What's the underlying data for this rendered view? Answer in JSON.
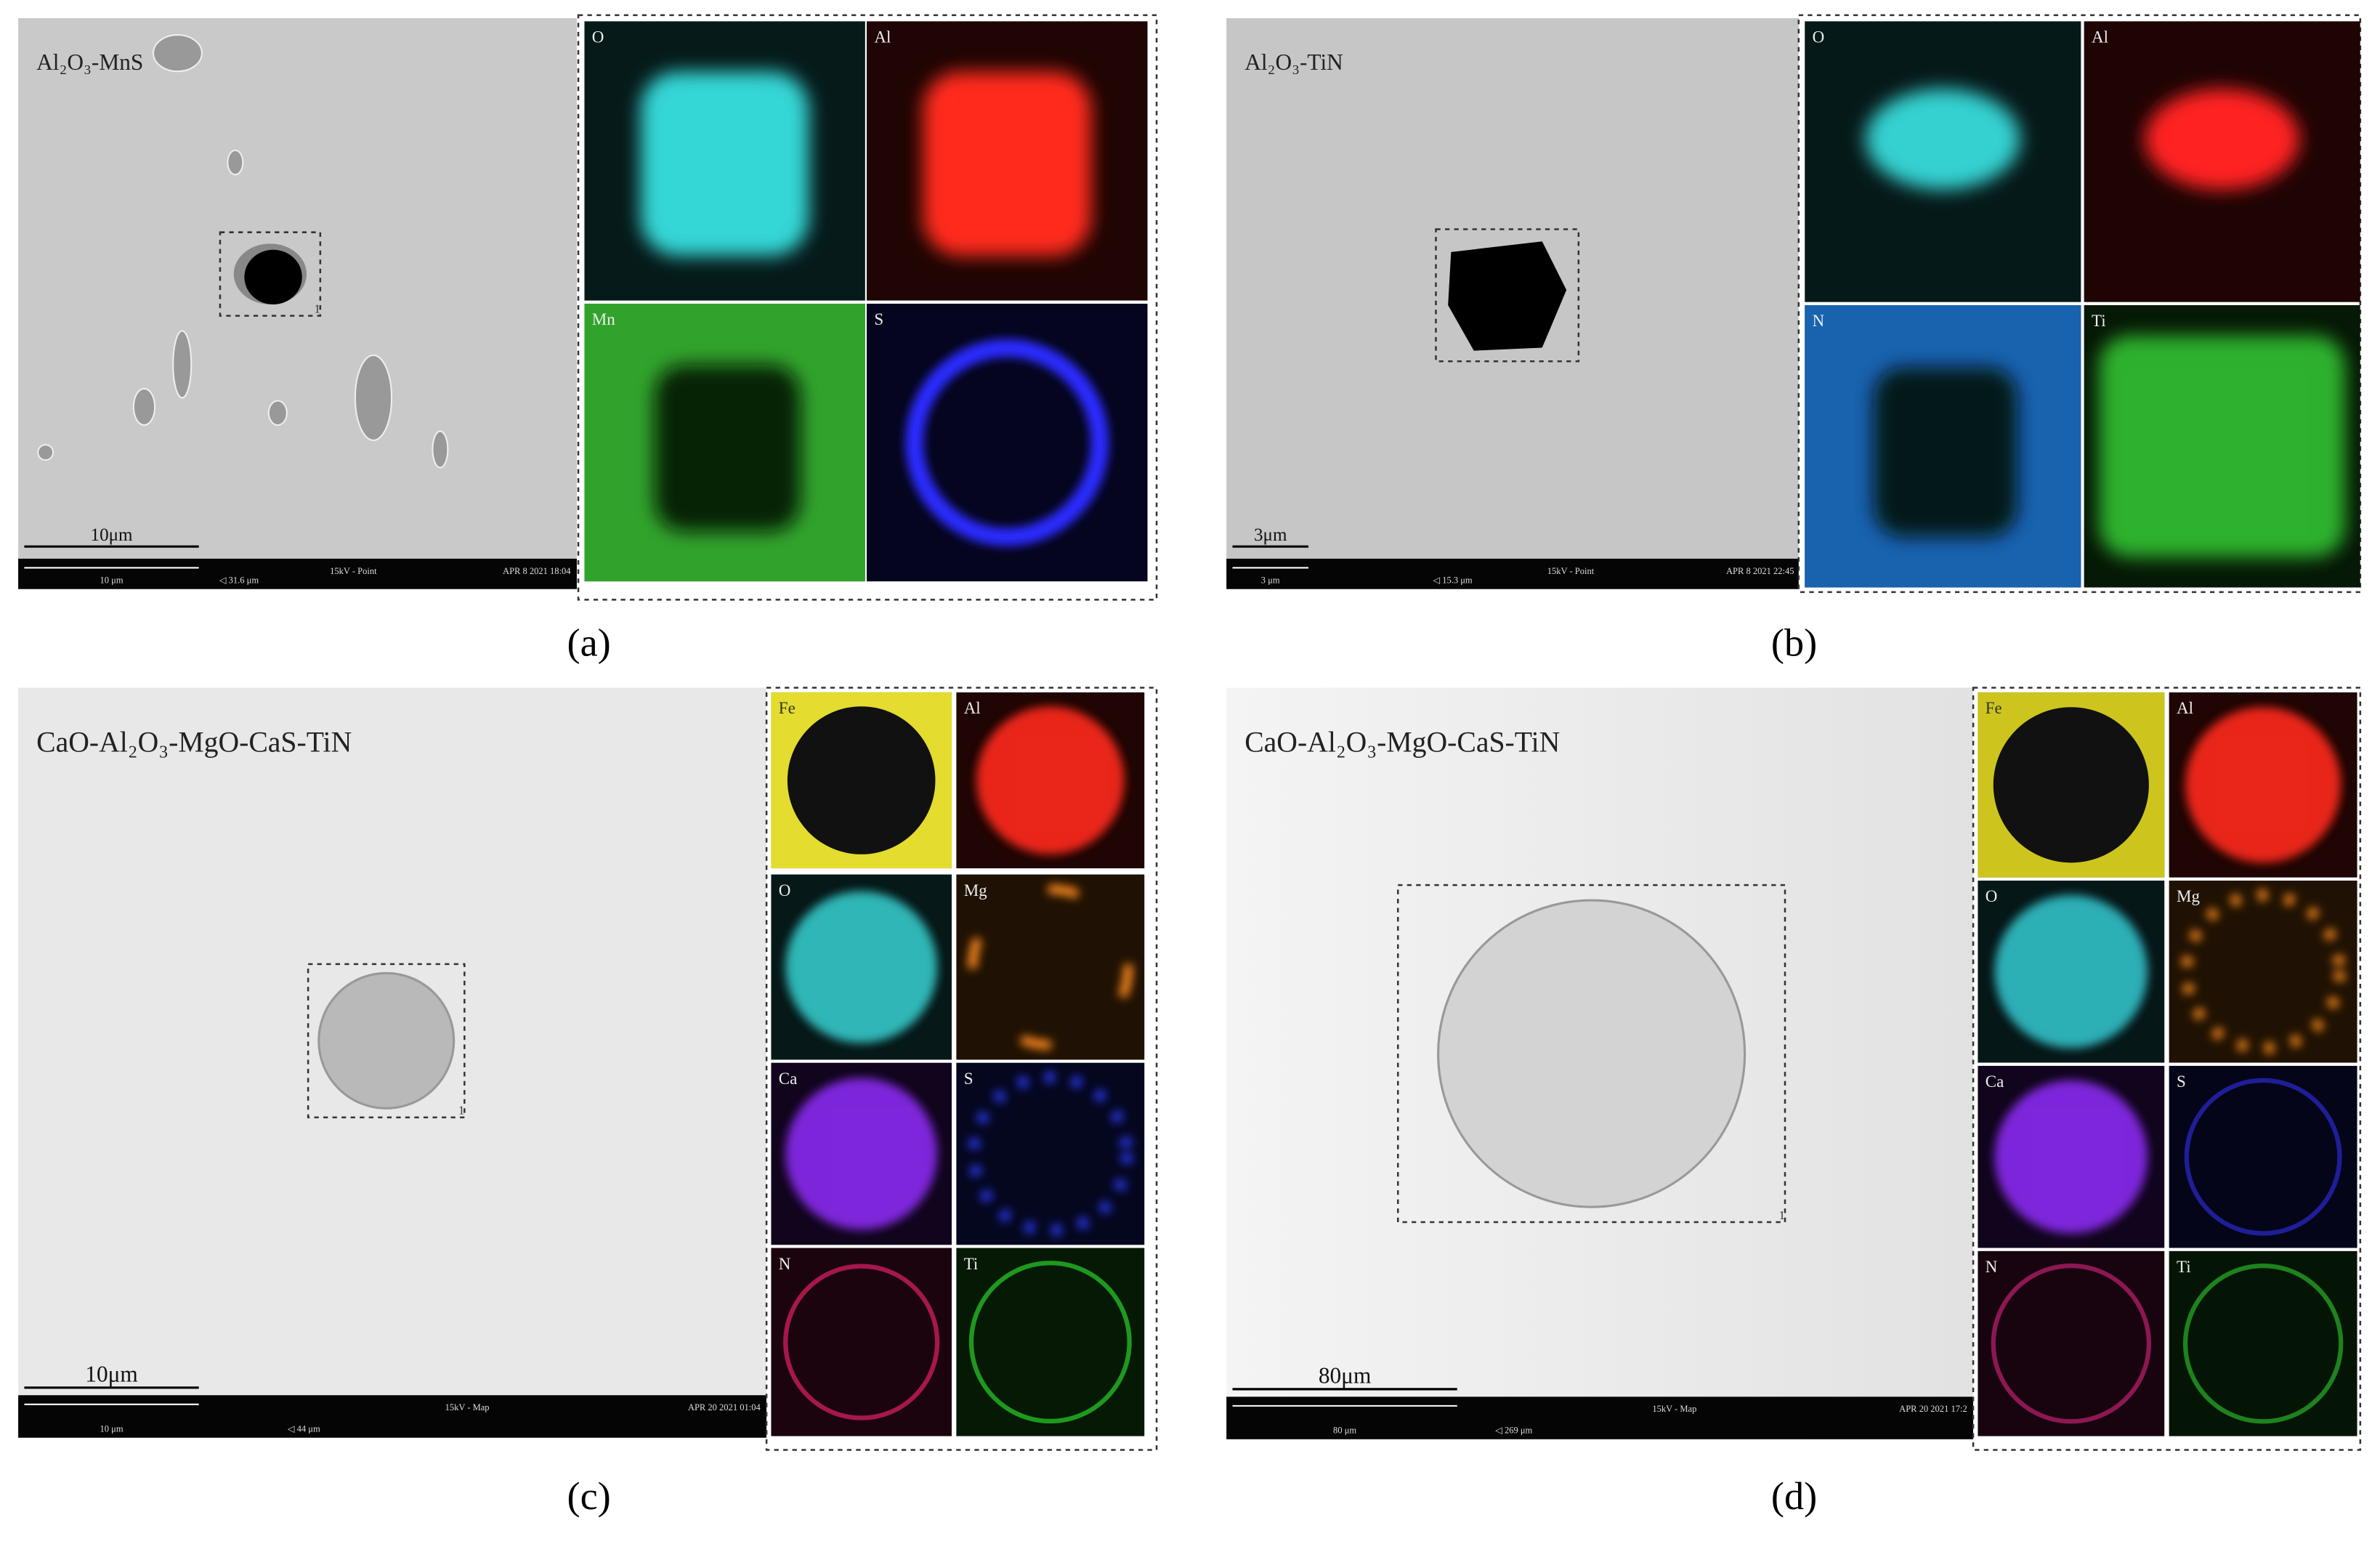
{
  "panels": [
    {
      "caption": "(a)",
      "title": "Al₂O₃-MnS",
      "scale_bar": "10μm",
      "box_label": "1",
      "info_bar": [
        "10 μm",
        "◁ 31.6 μm",
        "15kV - Point",
        "APR 8 2021 18:04"
      ],
      "maps": [
        {
          "label": "O",
          "color": "#35d6d6"
        },
        {
          "label": "Al",
          "color": "#ff2a1a"
        },
        {
          "label": "Mn",
          "color": "#3fd23a"
        },
        {
          "label": "S",
          "color": "#2a2aff"
        }
      ]
    },
    {
      "caption": "(b)",
      "title": "Al₂O₃-TiN",
      "scale_bar": "3μm",
      "info_bar": [
        "3 μm",
        "◁ 15.3 μm",
        "15kV - Point",
        "APR 8 2021 22:45"
      ],
      "maps": [
        {
          "label": "O",
          "color": "#35d0d0"
        },
        {
          "label": "Al",
          "color": "#ff2020"
        },
        {
          "label": "N",
          "color": "#1f7fe0"
        },
        {
          "label": "Ti",
          "color": "#34cc34"
        }
      ]
    },
    {
      "caption": "(c)",
      "title": "CaO-Al₂O₃-MgO-CaS-TiN",
      "scale_bar": "10μm",
      "box_label": "1",
      "info_bar": [
        "10 μm",
        "◁ 44 μm",
        "15kV - Map",
        "APR 20 2021 01:04"
      ],
      "maps": [
        {
          "label": "Fe",
          "color": "#f0e830"
        },
        {
          "label": "Al",
          "color": "#ff2a1a"
        },
        {
          "label": "O",
          "color": "#35c8c8"
        },
        {
          "label": "Mg",
          "color": "#ff8a1a"
        },
        {
          "label": "Ca",
          "color": "#8a2af0"
        },
        {
          "label": "S",
          "color": "#2a3aff"
        },
        {
          "label": "N",
          "color": "#e0206a"
        },
        {
          "label": "Ti",
          "color": "#2ad02a"
        }
      ]
    },
    {
      "caption": "(d)",
      "title": "CaO-Al₂O₃-MgO-CaS-TiN",
      "scale_bar": "80μm",
      "box_label": "1",
      "info_bar": [
        "80 μm",
        "◁ 269 μm",
        "15kV - Map",
        "APR 20 2021 17:2"
      ],
      "maps": [
        {
          "label": "Fe",
          "color": "#d8d020"
        },
        {
          "label": "Al",
          "color": "#ff2a1a"
        },
        {
          "label": "O",
          "color": "#30c0c8"
        },
        {
          "label": "Mg",
          "color": "#ff8a1a"
        },
        {
          "label": "Ca",
          "color": "#8a2af0"
        },
        {
          "label": "S",
          "color": "#2a2ad0"
        },
        {
          "label": "N",
          "color": "#c02070"
        },
        {
          "label": "Ti",
          "color": "#2ab02a"
        }
      ]
    }
  ]
}
